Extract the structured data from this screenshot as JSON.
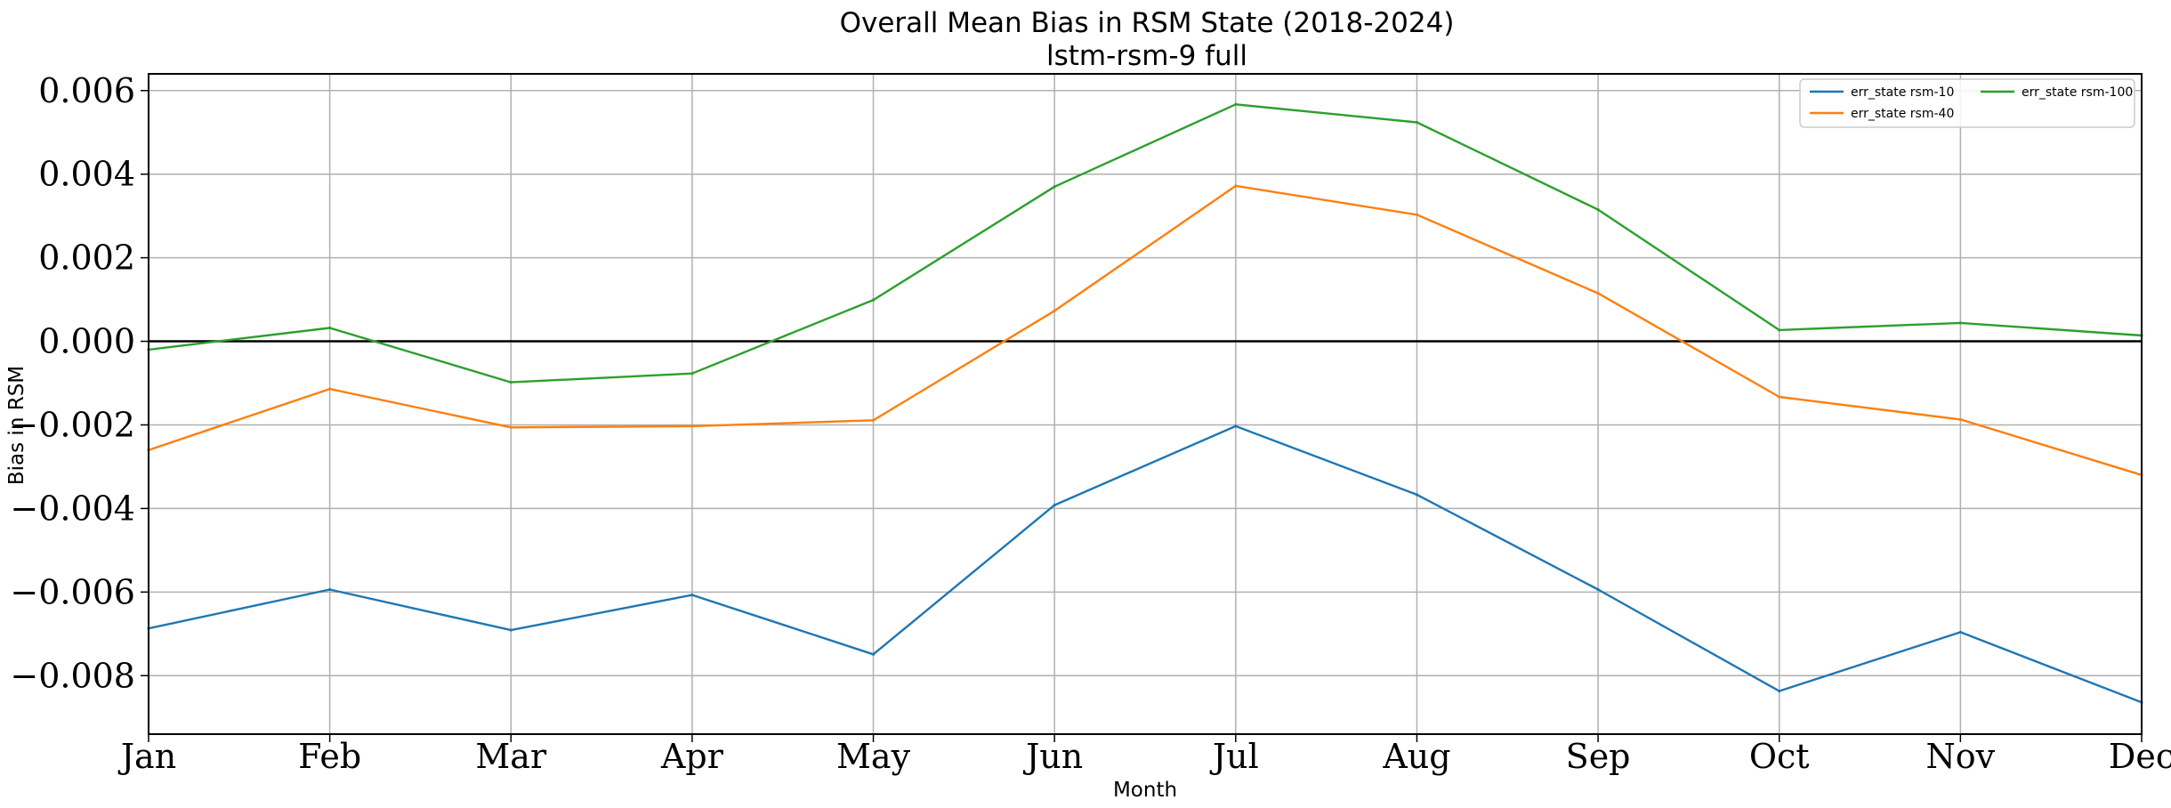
{
  "chart_data": {
    "type": "line",
    "title": "Overall Mean Bias in RSM State (2018-2024)",
    "subtitle": "lstm-rsm-9 full",
    "xlabel": "Month",
    "ylabel": "Bias in RSM",
    "categories": [
      "Jan",
      "Feb",
      "Mar",
      "Apr",
      "May",
      "Jun",
      "Jul",
      "Aug",
      "Sep",
      "Oct",
      "Nov",
      "Dec"
    ],
    "ylim": [
      -0.0094,
      0.0064
    ],
    "yticks": [
      0.006,
      0.004,
      0.002,
      0.0,
      -0.002,
      -0.004,
      -0.006,
      -0.008
    ],
    "ytick_labels": [
      "0.006",
      "0.004",
      "0.002",
      "0.000",
      "−0.002",
      "−0.004",
      "−0.006",
      "−0.008"
    ],
    "grid": true,
    "zero_line": true,
    "legend_position": "upper-right",
    "series": [
      {
        "name": "err_state rsm-10",
        "color": "#1f77b4",
        "values": [
          -0.00687,
          -0.00594,
          -0.00691,
          -0.00607,
          -0.00749,
          -0.00392,
          -0.00203,
          -0.00367,
          -0.00594,
          -0.00837,
          -0.00696,
          -0.00864
        ]
      },
      {
        "name": "err_state rsm-40",
        "color": "#ff7f0e",
        "values": [
          -0.0026,
          -0.00114,
          -0.00206,
          -0.00203,
          -0.00189,
          0.00073,
          0.00372,
          0.00303,
          0.00115,
          -0.00133,
          -0.00187,
          -0.0032
        ]
      },
      {
        "name": "err_state rsm-100",
        "color": "#2ca02c",
        "values": [
          -0.0002,
          0.00032,
          -0.00098,
          -0.00077,
          0.00099,
          0.0037,
          0.00567,
          0.00524,
          0.00315,
          0.00027,
          0.00044,
          0.00014
        ]
      }
    ]
  }
}
